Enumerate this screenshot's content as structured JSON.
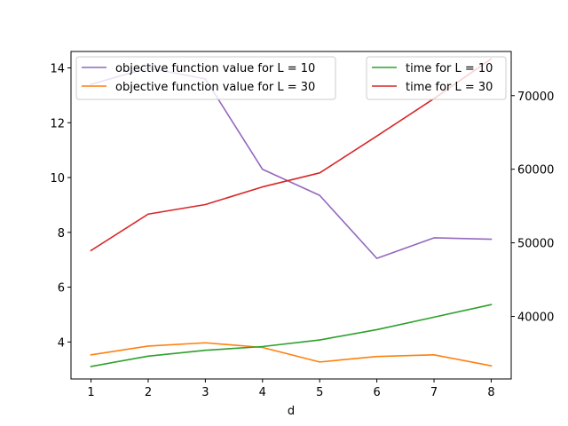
{
  "chart_data": {
    "type": "line",
    "xlabel": "d",
    "x": [
      1,
      2,
      3,
      4,
      5,
      6,
      7,
      8
    ],
    "xticks": [
      "1",
      "2",
      "3",
      "4",
      "5",
      "6",
      "7",
      "8"
    ],
    "xlim": [
      0.65,
      8.35
    ],
    "left_axis": {
      "ylim": [
        2.65,
        14.6
      ],
      "ticks": [
        4,
        6,
        8,
        10,
        12,
        14
      ],
      "tick_labels": [
        "4",
        "6",
        "8",
        "10",
        "12",
        "14"
      ]
    },
    "right_axis": {
      "ylim": [
        31500,
        76000
      ],
      "ticks": [
        40000,
        50000,
        60000,
        70000
      ],
      "tick_labels": [
        "40000",
        "50000",
        "60000",
        "70000"
      ]
    },
    "series": [
      {
        "name": "objective function value for L = 10",
        "axis": "left",
        "color": "#9467bd",
        "values": [
          13.4,
          14.0,
          13.6,
          10.3,
          9.35,
          7.05,
          7.8,
          7.75
        ]
      },
      {
        "name": "objective function value for L = 30",
        "axis": "left",
        "color": "#ff7f0e",
        "values": [
          3.53,
          3.85,
          3.97,
          3.8,
          3.27,
          3.47,
          3.53,
          3.13
        ]
      },
      {
        "name": "time for L = 10",
        "axis": "right",
        "color": "#2ca02c",
        "values": [
          33200,
          34600,
          35400,
          35900,
          36800,
          38200,
          39900,
          41600
        ]
      },
      {
        "name": "time for L = 30",
        "axis": "right",
        "color": "#d62728",
        "values": [
          48950,
          53900,
          55200,
          57600,
          59500,
          64500,
          69600,
          75000
        ]
      }
    ],
    "legends": [
      {
        "placement": "upper left",
        "series": [
          0,
          1
        ]
      },
      {
        "placement": "upper right",
        "series": [
          2,
          3
        ]
      }
    ]
  }
}
